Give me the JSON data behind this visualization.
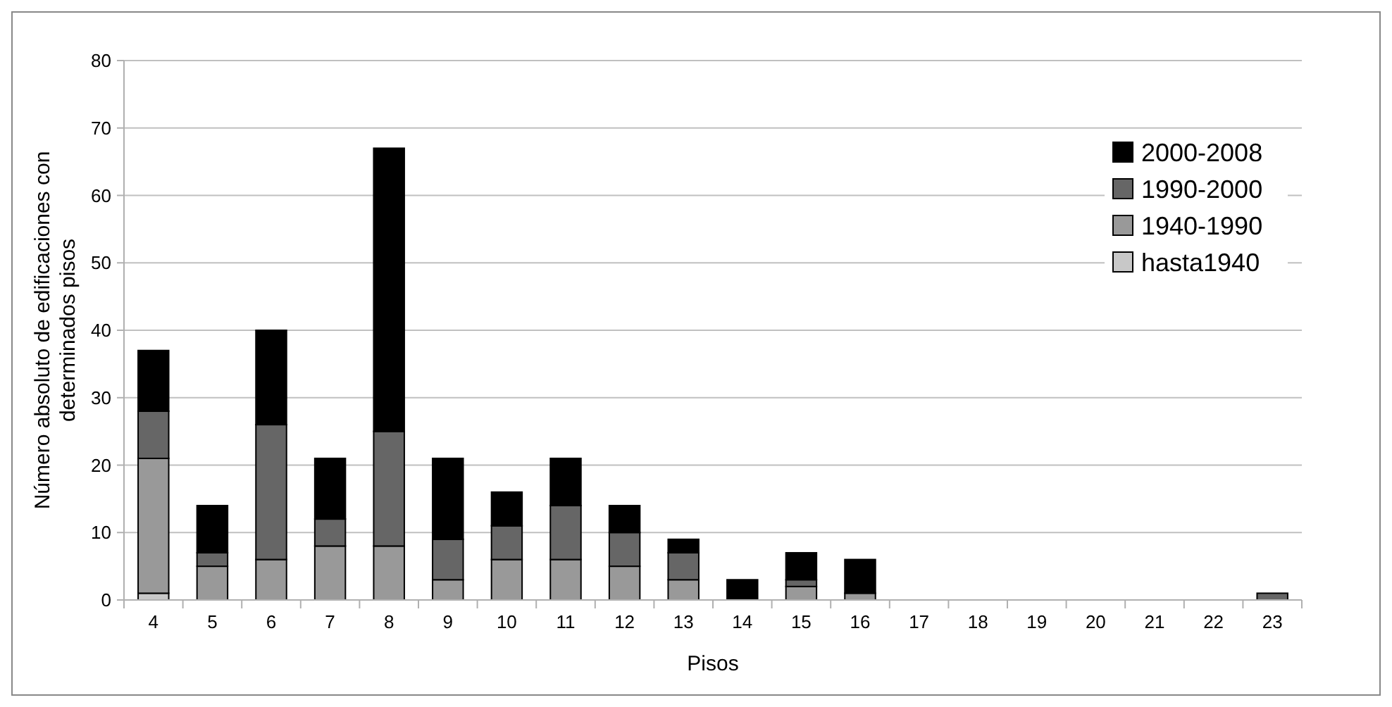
{
  "chart_data": {
    "type": "bar",
    "stacked": true,
    "xlabel": "Pisos",
    "ylabel": "Número absoluto de edificaciones con determinados pisos",
    "categories": [
      "4",
      "5",
      "6",
      "7",
      "8",
      "9",
      "10",
      "11",
      "12",
      "13",
      "14",
      "15",
      "16",
      "17",
      "18",
      "19",
      "20",
      "21",
      "22",
      "23"
    ],
    "series": [
      {
        "name": "hasta1940",
        "color": "#c8c8c8",
        "values": [
          1,
          0,
          0,
          0,
          0,
          0,
          0,
          0,
          0,
          0,
          0,
          0,
          0,
          0,
          0,
          0,
          0,
          0,
          0,
          0
        ]
      },
      {
        "name": "1940-1990",
        "color": "#999999",
        "values": [
          20,
          5,
          6,
          8,
          8,
          3,
          6,
          6,
          5,
          3,
          0,
          2,
          1,
          0,
          0,
          0,
          0,
          0,
          0,
          0
        ]
      },
      {
        "name": "1990-2000",
        "color": "#666666",
        "values": [
          7,
          2,
          20,
          4,
          17,
          6,
          5,
          8,
          5,
          4,
          0,
          1,
          0,
          0,
          0,
          0,
          0,
          0,
          0,
          1
        ]
      },
      {
        "name": "2000-2008",
        "color": "#000000",
        "values": [
          9,
          7,
          14,
          9,
          42,
          12,
          5,
          7,
          4,
          2,
          3,
          4,
          5,
          0,
          0,
          0,
          0,
          0,
          0,
          0
        ]
      }
    ],
    "ylim": [
      0,
      80
    ],
    "yticks": [
      0,
      10,
      20,
      30,
      40,
      50,
      60,
      70,
      80
    ],
    "grid": "y",
    "legend": "top right"
  }
}
